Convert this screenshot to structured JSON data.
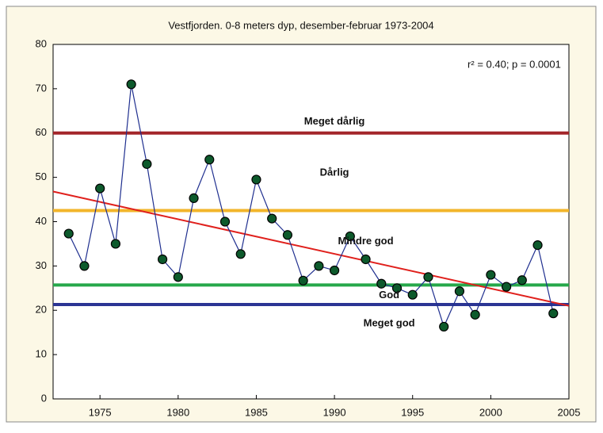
{
  "chart_data": {
    "type": "line",
    "title": "Vestfjorden. 0-8 meters dyp, desember-februar 1973-2004",
    "x": [
      1973,
      1974,
      1975,
      1976,
      1977,
      1978,
      1979,
      1980,
      1981,
      1982,
      1983,
      1984,
      1985,
      1986,
      1987,
      1988,
      1989,
      1990,
      1991,
      1992,
      1993,
      1994,
      1995,
      1996,
      1997,
      1998,
      1999,
      2000,
      2001,
      2002,
      2003,
      2004
    ],
    "series": [
      {
        "color": "#1f2f8f",
        "marker_color": "#0d5a2c",
        "values": [
          37.3,
          30,
          47.5,
          35,
          71,
          53,
          31.5,
          27.5,
          45.3,
          54,
          40,
          32.7,
          49.5,
          40.7,
          37,
          26.7,
          30,
          29,
          36.7,
          31.5,
          26,
          25,
          23.5,
          27.5,
          16.3,
          24.3,
          19,
          28,
          25.3,
          26.8,
          34.7,
          19.3
        ]
      }
    ],
    "trend": {
      "x": [
        1972,
        2005
      ],
      "values": [
        46.8,
        21
      ],
      "color": "#e0201c"
    },
    "reference_lines": [
      {
        "value": 60,
        "color": "#a3262a"
      },
      {
        "value": 42.5,
        "color": "#f2b52a"
      },
      {
        "value": 25.7,
        "color": "#26a84a"
      },
      {
        "value": 21.3,
        "color": "#2b3594"
      }
    ],
    "annotations": [
      {
        "text": "Meget dårlig",
        "x": 1990,
        "y": 62.5
      },
      {
        "text": "Dårlig",
        "x": 1990,
        "y": 51
      },
      {
        "text": "Mindre god",
        "x": 1992,
        "y": 35.5
      },
      {
        "text": "God",
        "x": 1993.5,
        "y": 23.3
      },
      {
        "text": "Meget god",
        "x": 1993.5,
        "y": 17
      }
    ],
    "stat_text": {
      "text": "r² = 0.40; p = 0.0001",
      "x": 2001.5,
      "y": 75.3
    },
    "xlim": [
      1972,
      2005
    ],
    "xticks": [
      1975,
      1980,
      1985,
      1990,
      1995,
      2000,
      2005
    ],
    "ylim": [
      0,
      80
    ],
    "yticks": [
      0,
      10,
      20,
      30,
      40,
      50,
      60,
      70,
      80
    ]
  }
}
